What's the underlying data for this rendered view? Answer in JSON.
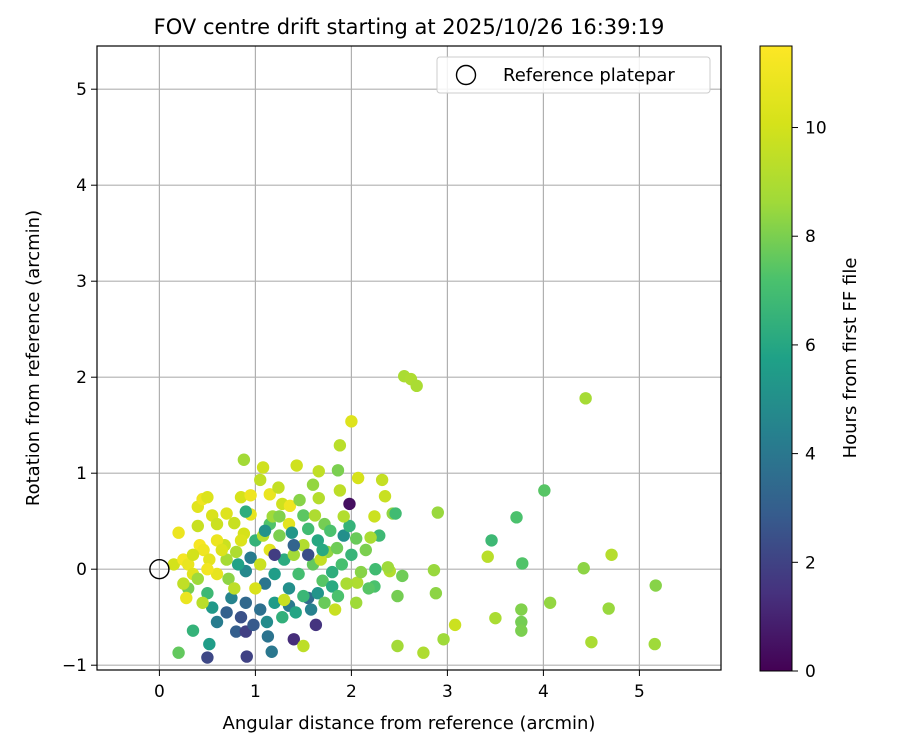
{
  "chart_data": {
    "type": "scatter",
    "title": "FOV centre drift starting at 2025/10/26 16:39:19",
    "xlabel": "Angular distance from reference (arcmin)",
    "ylabel": "Rotation from reference (arcmin)",
    "xlim": [
      -0.65,
      5.85
    ],
    "ylim": [
      -1.05,
      5.45
    ],
    "xticks": [
      0,
      1,
      2,
      3,
      4,
      5
    ],
    "yticks": [
      -1,
      0,
      1,
      2,
      3,
      4,
      5
    ],
    "grid": true,
    "legend": {
      "placement": "top-right",
      "entries": [
        "Reference platepar"
      ]
    },
    "reference_point": {
      "x": 0,
      "y": 0,
      "label": "Reference platepar",
      "marker": "open-circle"
    },
    "colorbar": {
      "label": "Hours from first FF file",
      "colormap": "viridis",
      "min": 0,
      "max": 11.5,
      "ticks": [
        0,
        2,
        4,
        6,
        8,
        10
      ]
    },
    "points": [
      [
        2.55,
        2.01,
        8.9
      ],
      [
        2.62,
        1.98,
        9.0
      ],
      [
        2.68,
        1.91,
        8.9
      ],
      [
        4.44,
        1.78,
        8.8
      ],
      [
        2.0,
        1.54,
        10.4
      ],
      [
        1.88,
        1.29,
        9.3
      ],
      [
        0.88,
        1.14,
        8.7
      ],
      [
        1.08,
        1.06,
        9.9
      ],
      [
        1.43,
        1.08,
        9.9
      ],
      [
        1.66,
        1.02,
        9.5
      ],
      [
        1.86,
        1.03,
        8.0
      ],
      [
        2.07,
        0.95,
        10.1
      ],
      [
        2.32,
        0.93,
        9.6
      ],
      [
        4.01,
        0.82,
        7.4
      ],
      [
        1.88,
        0.82,
        9.4
      ],
      [
        1.98,
        0.68,
        0.4
      ],
      [
        2.35,
        0.76,
        9.7
      ],
      [
        2.9,
        0.59,
        8.5
      ],
      [
        3.72,
        0.54,
        7.2
      ],
      [
        3.46,
        0.3,
        6.8
      ],
      [
        3.42,
        0.13,
        9.3
      ],
      [
        3.78,
        0.06,
        7.3
      ],
      [
        4.71,
        0.15,
        9.2
      ],
      [
        4.42,
        0.01,
        8.3
      ],
      [
        2.86,
        -0.01,
        8.5
      ],
      [
        2.53,
        -0.07,
        7.8
      ],
      [
        2.88,
        -0.25,
        8.3
      ],
      [
        2.48,
        -0.28,
        7.9
      ],
      [
        3.77,
        -0.42,
        8.1
      ],
      [
        4.07,
        -0.35,
        8.4
      ],
      [
        4.68,
        -0.41,
        8.5
      ],
      [
        5.17,
        -0.17,
        8.2
      ],
      [
        3.5,
        -0.51,
        8.9
      ],
      [
        3.08,
        -0.58,
        9.8
      ],
      [
        3.77,
        -0.55,
        7.9
      ],
      [
        3.77,
        -0.64,
        8.0
      ],
      [
        2.96,
        -0.73,
        8.6
      ],
      [
        2.48,
        -0.8,
        8.7
      ],
      [
        2.75,
        -0.87,
        9.0
      ],
      [
        4.5,
        -0.76,
        8.9
      ],
      [
        5.16,
        -0.78,
        8.6
      ],
      [
        0.2,
        -0.87,
        7.6
      ],
      [
        0.52,
        -0.78,
        5.6
      ],
      [
        0.5,
        -0.92,
        2.2
      ],
      [
        0.91,
        -0.91,
        2.0
      ],
      [
        1.17,
        -0.86,
        4.0
      ],
      [
        0.35,
        -0.64,
        6.5
      ],
      [
        0.8,
        -0.65,
        3.0
      ],
      [
        0.9,
        -0.65,
        1.9
      ],
      [
        1.13,
        -0.7,
        3.8
      ],
      [
        1.4,
        -0.73,
        1.3
      ],
      [
        1.5,
        -0.8,
        9.4
      ],
      [
        1.63,
        -0.58,
        1.5
      ],
      [
        1.83,
        -0.42,
        9.7
      ],
      [
        2.24,
        -0.18,
        7.2
      ],
      [
        2.06,
        -0.14,
        9.0
      ],
      [
        2.4,
        -0.02,
        9.1
      ],
      [
        2.38,
        0.02,
        8.6
      ],
      [
        2.29,
        0.35,
        6.8
      ],
      [
        2.43,
        0.58,
        8.4
      ],
      [
        2.46,
        0.58,
        6.9
      ],
      [
        2.24,
        0.55,
        9.8
      ],
      [
        2.2,
        0.33,
        8.9
      ],
      [
        0.2,
        0.38,
        10.9
      ],
      [
        0.4,
        0.65,
        10.5
      ],
      [
        0.45,
        0.73,
        11.0
      ],
      [
        0.5,
        0.75,
        10.3
      ],
      [
        0.55,
        0.56,
        10.2
      ],
      [
        0.6,
        0.47,
        9.8
      ],
      [
        0.7,
        0.58,
        10.4
      ],
      [
        0.85,
        0.75,
        10.1
      ],
      [
        0.95,
        0.77,
        11.0
      ],
      [
        1.05,
        0.93,
        9.5
      ],
      [
        1.15,
        0.78,
        10.8
      ],
      [
        1.24,
        0.85,
        9.6
      ],
      [
        1.28,
        0.68,
        9.9
      ],
      [
        1.36,
        0.66,
        11.0
      ],
      [
        1.46,
        0.72,
        8.2
      ],
      [
        1.5,
        0.56,
        7.5
      ],
      [
        1.62,
        0.56,
        9.0
      ],
      [
        1.66,
        0.74,
        9.2
      ],
      [
        1.72,
        0.47,
        7.9
      ],
      [
        1.35,
        0.47,
        10.6
      ],
      [
        1.15,
        0.47,
        7.3
      ],
      [
        0.95,
        0.57,
        10.7
      ],
      [
        0.78,
        0.48,
        9.7
      ],
      [
        0.88,
        0.37,
        10.1
      ],
      [
        0.15,
        0.05,
        10.0
      ],
      [
        0.25,
        0.1,
        11.2
      ],
      [
        0.3,
        0.05,
        10.8
      ],
      [
        0.35,
        -0.05,
        10.5
      ],
      [
        0.42,
        0.25,
        11.3
      ],
      [
        0.46,
        0.2,
        11.0
      ],
      [
        0.52,
        0.1,
        10.6
      ],
      [
        0.6,
        -0.05,
        10.7
      ],
      [
        0.68,
        0.25,
        9.8
      ],
      [
        0.72,
        -0.1,
        8.3
      ],
      [
        0.8,
        0.18,
        9.0
      ],
      [
        0.85,
        0.3,
        10.3
      ],
      [
        0.9,
        -0.02,
        4.7
      ],
      [
        0.95,
        0.12,
        4.2
      ],
      [
        1.0,
        0.3,
        6.5
      ],
      [
        1.05,
        0.05,
        9.8
      ],
      [
        1.1,
        -0.15,
        3.9
      ],
      [
        1.15,
        0.2,
        10.5
      ],
      [
        1.2,
        -0.05,
        5.6
      ],
      [
        1.25,
        0.35,
        8.0
      ],
      [
        1.3,
        0.1,
        6.2
      ],
      [
        1.35,
        -0.2,
        5.0
      ],
      [
        1.4,
        0.15,
        8.7
      ],
      [
        1.45,
        -0.05,
        7.0
      ],
      [
        1.5,
        0.25,
        9.1
      ],
      [
        1.55,
        -0.3,
        3.5
      ],
      [
        1.6,
        0.05,
        7.6
      ],
      [
        1.65,
        0.3,
        6.0
      ],
      [
        1.7,
        -0.12,
        7.4
      ],
      [
        1.75,
        0.18,
        8.4
      ],
      [
        1.8,
        -0.03,
        6.3
      ],
      [
        1.85,
        0.22,
        7.8
      ],
      [
        1.9,
        0.05,
        7.1
      ],
      [
        1.95,
        -0.15,
        8.9
      ],
      [
        2.0,
        0.15,
        6.6
      ],
      [
        2.05,
        0.32,
        7.7
      ],
      [
        2.1,
        -0.03,
        8.2
      ],
      [
        0.5,
        -0.25,
        6.8
      ],
      [
        0.55,
        -0.4,
        5.4
      ],
      [
        0.6,
        -0.55,
        4.2
      ],
      [
        0.7,
        -0.45,
        3.1
      ],
      [
        0.75,
        -0.3,
        4.5
      ],
      [
        0.85,
        -0.5,
        2.5
      ],
      [
        0.9,
        -0.35,
        3.4
      ],
      [
        0.98,
        -0.58,
        2.8
      ],
      [
        1.05,
        -0.42,
        3.7
      ],
      [
        1.12,
        -0.55,
        4.8
      ],
      [
        1.2,
        -0.35,
        5.5
      ],
      [
        1.28,
        -0.5,
        6.4
      ],
      [
        1.35,
        -0.38,
        4.1
      ],
      [
        1.42,
        -0.45,
        5.9
      ],
      [
        1.5,
        -0.28,
        6.7
      ],
      [
        1.58,
        -0.42,
        4.4
      ],
      [
        1.65,
        -0.25,
        5.2
      ],
      [
        1.72,
        -0.35,
        7.7
      ],
      [
        1.8,
        -0.18,
        6.1
      ],
      [
        0.3,
        -0.2,
        7.9
      ],
      [
        0.4,
        -0.1,
        8.6
      ],
      [
        0.45,
        -0.35,
        9.3
      ],
      [
        0.35,
        0.15,
        10.0
      ],
      [
        0.25,
        -0.15,
        9.5
      ],
      [
        0.6,
        0.3,
        10.9
      ],
      [
        0.7,
        0.1,
        8.8
      ],
      [
        0.78,
        -0.2,
        9.4
      ],
      [
        0.82,
        0.05,
        5.8
      ],
      [
        1.0,
        -0.2,
        10.2
      ],
      [
        1.08,
        0.35,
        9.2
      ],
      [
        1.18,
        0.55,
        8.6
      ],
      [
        1.3,
        -0.32,
        9.7
      ],
      [
        1.38,
        0.38,
        5.3
      ],
      [
        1.55,
        0.42,
        6.9
      ],
      [
        1.68,
        0.1,
        9.6
      ],
      [
        1.78,
        0.4,
        7.2
      ],
      [
        1.92,
        0.35,
        5.0
      ],
      [
        2.15,
        0.2,
        8.0
      ],
      [
        2.25,
        0.0,
        6.9
      ],
      [
        2.18,
        -0.2,
        7.4
      ],
      [
        1.6,
        0.88,
        8.4
      ],
      [
        1.25,
        0.55,
        8.1
      ],
      [
        0.65,
        0.2,
        10.3
      ],
      [
        0.28,
        -0.3,
        10.8
      ],
      [
        0.5,
        0.0,
        11.1
      ],
      [
        0.4,
        0.45,
        9.7
      ],
      [
        0.9,
        0.6,
        6.3
      ],
      [
        1.1,
        0.4,
        5.1
      ],
      [
        1.4,
        0.25,
        3.2
      ],
      [
        1.55,
        0.15,
        2.4
      ],
      [
        1.2,
        0.15,
        1.8
      ],
      [
        1.7,
        0.2,
        6.1
      ],
      [
        1.98,
        0.45,
        6.5
      ],
      [
        2.05,
        -0.35,
        8.6
      ],
      [
        1.86,
        -0.28,
        7.2
      ],
      [
        1.92,
        0.55,
        9.1
      ]
    ]
  }
}
